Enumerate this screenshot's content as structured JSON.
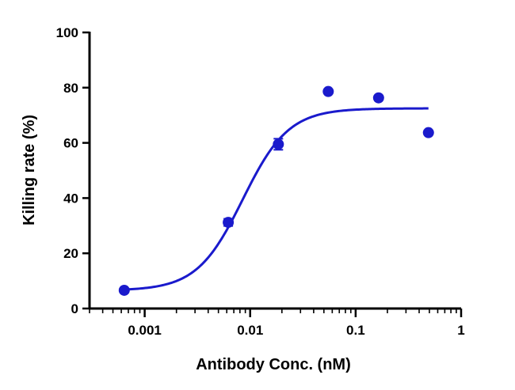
{
  "chart_data": {
    "type": "scatter",
    "title": "",
    "xlabel": "Antibody Conc. (nM)",
    "ylabel": "Killing rate (%)",
    "x_scale": "log",
    "xlim": [
      0.0003,
      1
    ],
    "ylim": [
      0,
      100
    ],
    "x_ticks": [
      {
        "value": 0.001,
        "label": "0.001"
      },
      {
        "value": 0.01,
        "label": "0.01"
      },
      {
        "value": 0.1,
        "label": "0.1"
      },
      {
        "value": 1,
        "label": "1"
      }
    ],
    "y_ticks": [
      {
        "value": 0,
        "label": "0"
      },
      {
        "value": 20,
        "label": "20"
      },
      {
        "value": 40,
        "label": "40"
      },
      {
        "value": 60,
        "label": "60"
      },
      {
        "value": 80,
        "label": "80"
      },
      {
        "value": 100,
        "label": "100"
      }
    ],
    "grid": false,
    "legend": "none",
    "color": "#1a1acc",
    "points": [
      {
        "x": 0.00064,
        "y": 6.6,
        "err": 0.6
      },
      {
        "x": 0.0062,
        "y": 31.2,
        "err": 1.3
      },
      {
        "x": 0.0185,
        "y": 59.5,
        "err": 2.0
      },
      {
        "x": 0.055,
        "y": 78.6,
        "err": 0.6
      },
      {
        "x": 0.165,
        "y": 76.3,
        "err": 0.6
      },
      {
        "x": 0.49,
        "y": 63.7,
        "err": 0.6
      }
    ],
    "fit": {
      "model": "four-parameter logistic",
      "bottom": 6.5,
      "top": 72.5,
      "ec50": 0.0085,
      "hill": 2.0,
      "x_range": [
        0.00064,
        0.49
      ]
    }
  }
}
